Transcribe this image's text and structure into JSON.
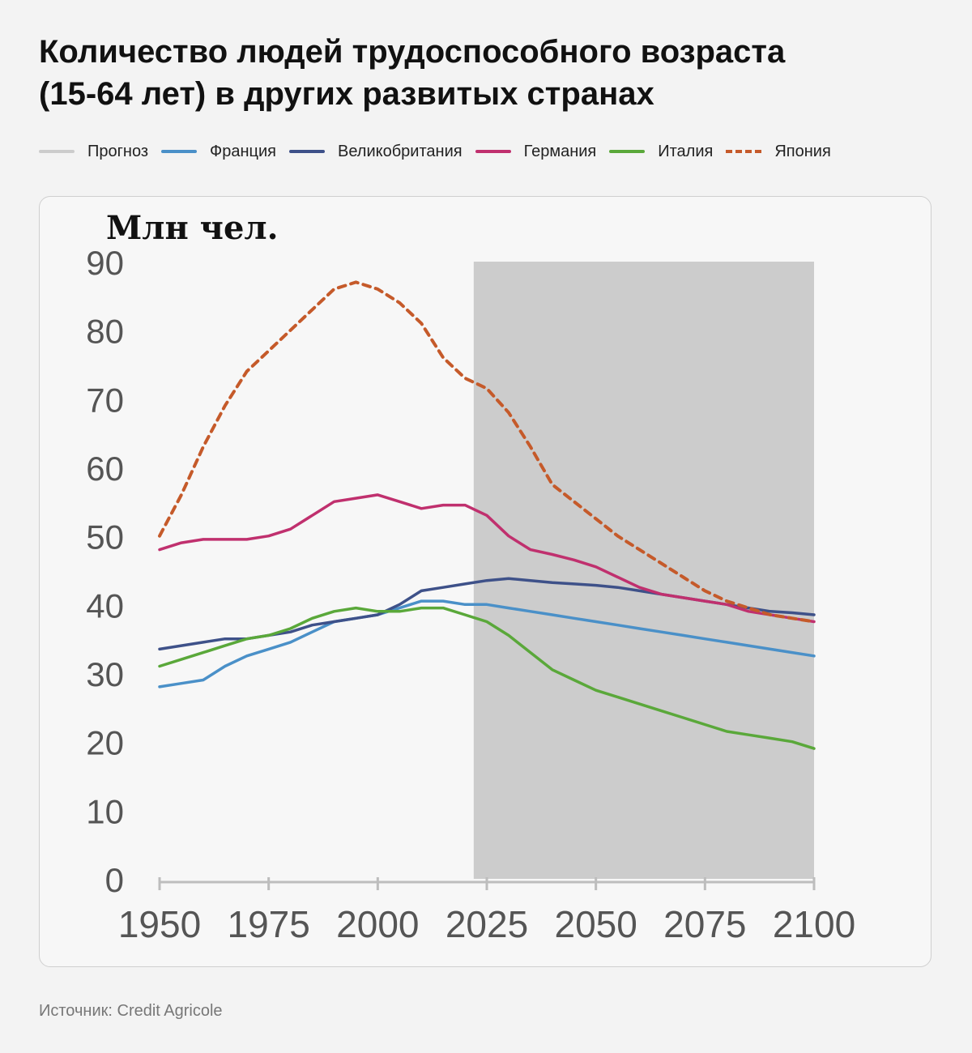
{
  "header": {
    "title_line1": "Количество людей трудоспособного возраста",
    "title_line2": "(15-64 лет) в других развитых странах"
  },
  "legend": [
    {
      "label": "Прогноз",
      "color": "#cccccc",
      "dashed": false
    },
    {
      "label": "Франция",
      "color": "#4a90c8",
      "dashed": false
    },
    {
      "label": "Великобритания",
      "color": "#3e5189",
      "dashed": false
    },
    {
      "label": "Германия",
      "color": "#c0306e",
      "dashed": false
    },
    {
      "label": "Италия",
      "color": "#5aa83a",
      "dashed": false
    },
    {
      "label": "Япония",
      "color": "#c55a2a",
      "dashed": true
    }
  ],
  "source": "Источник: Credit Agricole",
  "chart_data": {
    "type": "line",
    "ylabel": "Млн чел.",
    "xlabel": "",
    "xlim": [
      1950,
      2100
    ],
    "ylim": [
      0,
      90
    ],
    "x_ticks": [
      "1950",
      "1975",
      "2000",
      "2025",
      "2050",
      "2075",
      "2100"
    ],
    "y_ticks": [
      "0",
      "10",
      "20",
      "30",
      "40",
      "50",
      "60",
      "70",
      "80",
      "90"
    ],
    "forecast_region": {
      "from": 2022,
      "to": 2100,
      "color": "#cccccc",
      "label": "Прогноз"
    },
    "grid": false,
    "series": [
      {
        "name": "Франция",
        "color": "#4a90c8",
        "dashed": false,
        "points": [
          [
            1950,
            28
          ],
          [
            1955,
            28.5
          ],
          [
            1960,
            29
          ],
          [
            1965,
            31
          ],
          [
            1970,
            32.5
          ],
          [
            1975,
            33.5
          ],
          [
            1980,
            34.5
          ],
          [
            1985,
            36
          ],
          [
            1990,
            37.5
          ],
          [
            1995,
            38
          ],
          [
            2000,
            38.5
          ],
          [
            2005,
            39.5
          ],
          [
            2010,
            40.5
          ],
          [
            2015,
            40.5
          ],
          [
            2020,
            40
          ],
          [
            2025,
            40
          ],
          [
            2030,
            39.5
          ],
          [
            2035,
            39
          ],
          [
            2040,
            38.5
          ],
          [
            2045,
            38
          ],
          [
            2050,
            37.5
          ],
          [
            2055,
            37
          ],
          [
            2060,
            36.5
          ],
          [
            2065,
            36
          ],
          [
            2070,
            35.5
          ],
          [
            2075,
            35
          ],
          [
            2080,
            34.5
          ],
          [
            2085,
            34
          ],
          [
            2090,
            33.5
          ],
          [
            2095,
            33
          ],
          [
            2100,
            32.5
          ]
        ]
      },
      {
        "name": "Великобритания",
        "color": "#3e5189",
        "dashed": false,
        "points": [
          [
            1950,
            33.5
          ],
          [
            1955,
            34
          ],
          [
            1960,
            34.5
          ],
          [
            1965,
            35
          ],
          [
            1970,
            35
          ],
          [
            1975,
            35.5
          ],
          [
            1980,
            36
          ],
          [
            1985,
            37
          ],
          [
            1990,
            37.5
          ],
          [
            1995,
            38
          ],
          [
            2000,
            38.5
          ],
          [
            2005,
            40
          ],
          [
            2010,
            42
          ],
          [
            2015,
            42.5
          ],
          [
            2020,
            43
          ],
          [
            2025,
            43.5
          ],
          [
            2030,
            43.8
          ],
          [
            2035,
            43.5
          ],
          [
            2040,
            43.2
          ],
          [
            2045,
            43
          ],
          [
            2050,
            42.8
          ],
          [
            2055,
            42.5
          ],
          [
            2060,
            42
          ],
          [
            2065,
            41.5
          ],
          [
            2070,
            41
          ],
          [
            2075,
            40.5
          ],
          [
            2080,
            40
          ],
          [
            2085,
            39.5
          ],
          [
            2090,
            39
          ],
          [
            2095,
            38.8
          ],
          [
            2100,
            38.5
          ]
        ]
      },
      {
        "name": "Германия",
        "color": "#c0306e",
        "dashed": false,
        "points": [
          [
            1950,
            48
          ],
          [
            1955,
            49
          ],
          [
            1960,
            49.5
          ],
          [
            1965,
            49.5
          ],
          [
            1970,
            49.5
          ],
          [
            1975,
            50
          ],
          [
            1980,
            51
          ],
          [
            1985,
            53
          ],
          [
            1990,
            55
          ],
          [
            1995,
            55.5
          ],
          [
            2000,
            56
          ],
          [
            2005,
            55
          ],
          [
            2010,
            54
          ],
          [
            2015,
            54.5
          ],
          [
            2020,
            54.5
          ],
          [
            2025,
            53
          ],
          [
            2030,
            50
          ],
          [
            2035,
            48
          ],
          [
            2040,
            47.3
          ],
          [
            2045,
            46.5
          ],
          [
            2050,
            45.5
          ],
          [
            2055,
            44
          ],
          [
            2060,
            42.5
          ],
          [
            2065,
            41.5
          ],
          [
            2070,
            41
          ],
          [
            2075,
            40.5
          ],
          [
            2080,
            40
          ],
          [
            2085,
            39
          ],
          [
            2090,
            38.5
          ],
          [
            2095,
            38
          ],
          [
            2100,
            37.5
          ]
        ]
      },
      {
        "name": "Италия",
        "color": "#5aa83a",
        "dashed": false,
        "points": [
          [
            1950,
            31
          ],
          [
            1955,
            32
          ],
          [
            1960,
            33
          ],
          [
            1965,
            34
          ],
          [
            1970,
            35
          ],
          [
            1975,
            35.5
          ],
          [
            1980,
            36.5
          ],
          [
            1985,
            38
          ],
          [
            1990,
            39
          ],
          [
            1995,
            39.5
          ],
          [
            2000,
            39
          ],
          [
            2005,
            39
          ],
          [
            2010,
            39.5
          ],
          [
            2015,
            39.5
          ],
          [
            2020,
            38.5
          ],
          [
            2025,
            37.5
          ],
          [
            2030,
            35.5
          ],
          [
            2035,
            33
          ],
          [
            2040,
            30.5
          ],
          [
            2045,
            29
          ],
          [
            2050,
            27.5
          ],
          [
            2055,
            26.5
          ],
          [
            2060,
            25.5
          ],
          [
            2065,
            24.5
          ],
          [
            2070,
            23.5
          ],
          [
            2075,
            22.5
          ],
          [
            2080,
            21.5
          ],
          [
            2085,
            21
          ],
          [
            2090,
            20.5
          ],
          [
            2095,
            20
          ],
          [
            2100,
            19
          ]
        ]
      },
      {
        "name": "Япония",
        "color": "#c55a2a",
        "dashed": true,
        "points": [
          [
            1950,
            50
          ],
          [
            1955,
            56
          ],
          [
            1960,
            63
          ],
          [
            1965,
            69
          ],
          [
            1970,
            74
          ],
          [
            1975,
            77
          ],
          [
            1980,
            80
          ],
          [
            1985,
            83
          ],
          [
            1990,
            86
          ],
          [
            1995,
            87
          ],
          [
            2000,
            86
          ],
          [
            2005,
            84
          ],
          [
            2010,
            81
          ],
          [
            2015,
            76
          ],
          [
            2020,
            73
          ],
          [
            2025,
            71.5
          ],
          [
            2030,
            68
          ],
          [
            2035,
            63
          ],
          [
            2040,
            57.5
          ],
          [
            2045,
            55
          ],
          [
            2050,
            52.5
          ],
          [
            2055,
            50
          ],
          [
            2060,
            48
          ],
          [
            2065,
            46
          ],
          [
            2070,
            44
          ],
          [
            2075,
            42
          ],
          [
            2080,
            40.5
          ],
          [
            2085,
            39.5
          ],
          [
            2090,
            38.5
          ],
          [
            2095,
            38
          ],
          [
            2100,
            37.5
          ]
        ]
      }
    ]
  }
}
